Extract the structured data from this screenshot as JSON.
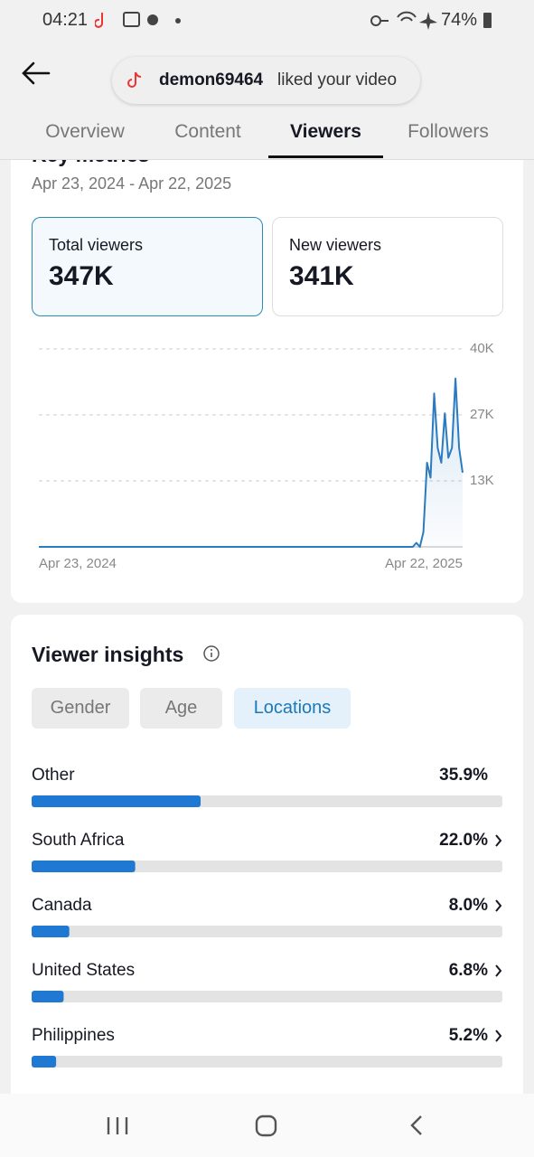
{
  "status_bar": {
    "time": "04:21",
    "battery": "74%"
  },
  "notification": {
    "user": "demon69464",
    "text": "liked your video"
  },
  "tabs": [
    "Overview",
    "Content",
    "Viewers",
    "Followers"
  ],
  "active_tab": 2,
  "key_metrics": {
    "title": "Key metrics",
    "date_range": "Apr 23, 2024 - Apr 22, 2025",
    "cards": [
      {
        "label": "Total viewers",
        "value": "347K"
      },
      {
        "label": "New viewers",
        "value": "341K"
      }
    ],
    "active_card": 0
  },
  "viewer_insights": {
    "title": "Viewer insights",
    "filters": [
      "Gender",
      "Age",
      "Locations"
    ],
    "active_filter": 2
  },
  "chart_data": [
    {
      "type": "line",
      "color": "#2b7bbf",
      "categories": [
        "Apr 23, 2024",
        null,
        null,
        null,
        null,
        null,
        null,
        null,
        null,
        null,
        null,
        null,
        null,
        null,
        null,
        null,
        null,
        null,
        null,
        null,
        null,
        null,
        null,
        null,
        null,
        null,
        null,
        null,
        null,
        null,
        null,
        null,
        null,
        null,
        null,
        null,
        null,
        null,
        null,
        null,
        null,
        null,
        null,
        null,
        null,
        null,
        null,
        null,
        null,
        null,
        null,
        null,
        null,
        null,
        null,
        null,
        null,
        null,
        null,
        null,
        null,
        null,
        null,
        null,
        null,
        null,
        null,
        null,
        null,
        null,
        null,
        null,
        null,
        null,
        null,
        null,
        null,
        null,
        null,
        null,
        null,
        null,
        null,
        null,
        null,
        null,
        null,
        null,
        null,
        null,
        null,
        null,
        null,
        null,
        null,
        null,
        null,
        null,
        null,
        null,
        null,
        null,
        null,
        null,
        null,
        null,
        null,
        null,
        null,
        null,
        null,
        null,
        null,
        null,
        null,
        null,
        null,
        null,
        null,
        "Apr 22, 2025"
      ],
      "series": [
        {
          "values": [
            0,
            0,
            0,
            0,
            0,
            0,
            0,
            0,
            0,
            0,
            0,
            0,
            0,
            0,
            0,
            0,
            0,
            0,
            0,
            0,
            0,
            0,
            0,
            0,
            0,
            0,
            0,
            0,
            0,
            0,
            0,
            0,
            0,
            0,
            0,
            0,
            0,
            0,
            0,
            0,
            0,
            0,
            0,
            0,
            0,
            0,
            0,
            0,
            0,
            0,
            0,
            0,
            0,
            0,
            0,
            0,
            0,
            0,
            0,
            0,
            0,
            0,
            0,
            0,
            0,
            0,
            0,
            0,
            0,
            0,
            0,
            0,
            0,
            0,
            0,
            0,
            0,
            0,
            0,
            0,
            0,
            0,
            0,
            0,
            0,
            0,
            0,
            0,
            0,
            0,
            0,
            0,
            0,
            0,
            0,
            0,
            0,
            0,
            0,
            0,
            0,
            0,
            0,
            0,
            0,
            0,
            800,
            0,
            3000,
            17000,
            14000,
            31000,
            20000,
            17000,
            27000,
            18000,
            20000,
            34000,
            20000,
            15000
          ]
        }
      ],
      "ylim": [
        0,
        40000
      ],
      "yticks": [
        {
          "value": 13333,
          "label": "13K"
        },
        {
          "value": 26667,
          "label": "27K"
        },
        {
          "value": 40000,
          "label": "40K"
        }
      ],
      "grid": true
    },
    {
      "type": "bar",
      "orientation": "horizontal",
      "color": "#1f78d1",
      "categories": [
        "Other",
        "South Africa",
        "Canada",
        "United States",
        "Philippines"
      ],
      "values": [
        35.9,
        22.0,
        8.0,
        6.8,
        5.2
      ],
      "value_labels": [
        "35.9%",
        "22.0%",
        "8.0%",
        "6.8%",
        "5.2%"
      ],
      "links": [
        false,
        true,
        true,
        true,
        true
      ],
      "xlim": [
        0,
        100
      ]
    }
  ]
}
